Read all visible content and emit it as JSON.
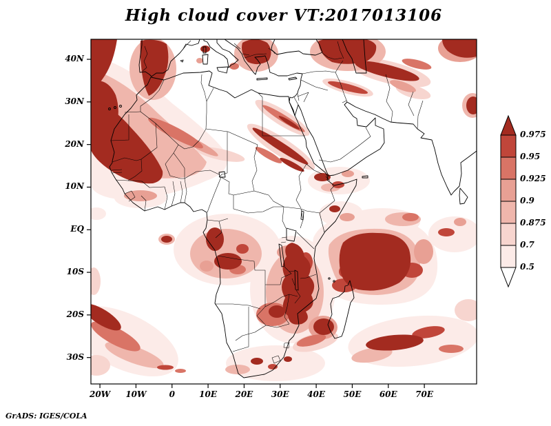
{
  "header": {
    "title": "High cloud cover VT:2017013106"
  },
  "footer": {
    "attribution": "GrADS: IGES/COLA"
  },
  "chart_data": {
    "type": "heatmap",
    "title": "High cloud cover VT:2017013106",
    "variable": "high cloud cover fraction",
    "valid_time_label": "VT:2017013106",
    "region": "Africa, southern Europe, Middle East and surrounding oceans",
    "x_axis": {
      "tick_labels": [
        "20W",
        "10W",
        "0",
        "10E",
        "20E",
        "30E",
        "40E",
        "50E",
        "60E",
        "70E"
      ],
      "lon_values": [
        -20,
        -10,
        0,
        10,
        20,
        30,
        40,
        50,
        60,
        70
      ],
      "range_lon": [
        -22.5,
        84.5
      ]
    },
    "y_axis": {
      "tick_labels": [
        "40N",
        "30N",
        "20N",
        "10N",
        "EQ",
        "10S",
        "20S",
        "30S"
      ],
      "lat_values": [
        40,
        30,
        20,
        10,
        0,
        -10,
        -20,
        -30
      ],
      "range_lat": [
        -36.2,
        44.7
      ]
    },
    "colorbar": {
      "orientation": "vertical",
      "position": "right",
      "tick_labels_top_to_bottom": [
        "0.975",
        "0.95",
        "0.925",
        "0.9",
        "0.875",
        "0.7",
        "0.5"
      ],
      "levels_ascending": [
        0.5,
        0.7,
        0.875,
        0.9,
        0.925,
        0.95,
        0.975
      ],
      "colors_top_to_bottom": [
        "#a32b20",
        "#c0463a",
        "#d97466",
        "#e8a094",
        "#efb6ac",
        "#f7d5cf",
        "#fcebe8",
        "#ffffff"
      ]
    },
    "grid": false,
    "shading_summary": [
      "dense dark band over NE Atlantic from NW Africa down to Senegal",
      "dark mass over Morocco and Iberia",
      "narrow diagonal streak across Libya-Egypt border into Sudan",
      "cloud clusters over Gabon and the Congo basin",
      "large dark mass over SW Indian Ocean east of Madagascar",
      "dark clusters over Tanzania, Mozambique and Zimbabwe",
      "dark patches over the Aegean, eastern Turkey, Caucasus and south Caspian",
      "streak systems in the far South Atlantic and southern Indian Ocean"
    ]
  }
}
